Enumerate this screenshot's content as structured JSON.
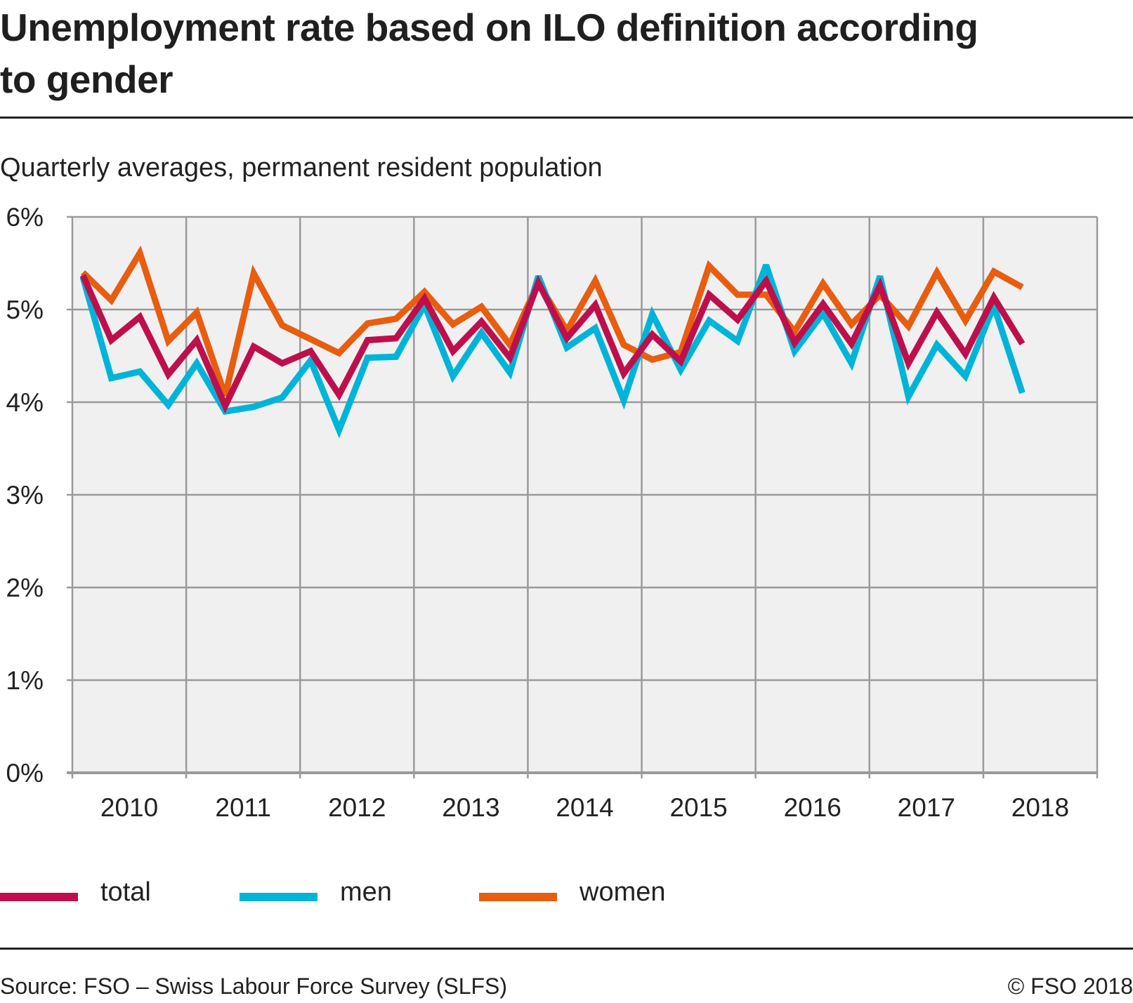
{
  "title": "Unemployment rate based on ILO definition according to gender",
  "subtitle": "Quarterly averages, permanent resident population",
  "legend": [
    {
      "name": "total",
      "color": "#be0f4d"
    },
    {
      "name": "men",
      "color": "#00b4d8"
    },
    {
      "name": "women",
      "color": "#e85d0f"
    }
  ],
  "footer": {
    "source": "Source: FSO – Swiss Labour Force Survey (SLFS)",
    "copyright": "© FSO 2018"
  },
  "chart_data": {
    "type": "line",
    "title": "Unemployment rate based on ILO definition according to gender",
    "subtitle": "Quarterly averages, permanent resident population",
    "xlabel": "",
    "ylabel": "",
    "x": [
      "2010Q1",
      "2010Q2",
      "2010Q3",
      "2010Q4",
      "2011Q1",
      "2011Q2",
      "2011Q3",
      "2011Q4",
      "2012Q1",
      "2012Q2",
      "2012Q3",
      "2012Q4",
      "2013Q1",
      "2013Q2",
      "2013Q3",
      "2013Q4",
      "2014Q1",
      "2014Q2",
      "2014Q3",
      "2014Q4",
      "2015Q1",
      "2015Q2",
      "2015Q3",
      "2015Q4",
      "2016Q1",
      "2016Q2",
      "2016Q3",
      "2016Q4",
      "2017Q1",
      "2017Q2",
      "2017Q3",
      "2017Q4",
      "2018Q1",
      "2018Q2"
    ],
    "x_tick_labels": [
      "2010",
      "2011",
      "2012",
      "2013",
      "2014",
      "2015",
      "2016",
      "2017",
      "2018"
    ],
    "y_tick_labels": [
      "0%",
      "1%",
      "2%",
      "3%",
      "4%",
      "5%",
      "6%"
    ],
    "ylim": [
      0,
      6
    ],
    "y_unit": "%",
    "grid": true,
    "legend_position": "bottom",
    "series": [
      {
        "name": "total",
        "color": "#be0f4d",
        "values": [
          5.37,
          4.67,
          4.92,
          4.3,
          4.67,
          3.96,
          4.6,
          4.42,
          4.55,
          4.08,
          4.67,
          4.69,
          5.12,
          4.55,
          4.87,
          4.48,
          5.29,
          4.69,
          5.05,
          4.31,
          4.73,
          4.44,
          5.16,
          4.89,
          5.31,
          4.64,
          5.06,
          4.63,
          5.26,
          4.42,
          4.97,
          4.52,
          5.13,
          4.63
        ]
      },
      {
        "name": "men",
        "color": "#00b4d8",
        "values": [
          5.35,
          4.26,
          4.33,
          3.97,
          4.42,
          3.9,
          3.95,
          4.05,
          4.45,
          3.7,
          4.48,
          4.49,
          5.05,
          4.28,
          4.75,
          4.32,
          5.36,
          4.59,
          4.8,
          4.02,
          4.95,
          4.35,
          4.88,
          4.66,
          5.48,
          4.55,
          4.96,
          4.42,
          5.36,
          4.06,
          4.62,
          4.28,
          5.04,
          4.1
        ]
      },
      {
        "name": "women",
        "color": "#e85d0f",
        "values": [
          5.4,
          5.1,
          5.61,
          4.66,
          4.97,
          4.07,
          5.39,
          4.83,
          4.68,
          4.53,
          4.85,
          4.9,
          5.19,
          4.84,
          5.03,
          4.62,
          5.29,
          4.77,
          5.31,
          4.62,
          4.46,
          4.54,
          5.47,
          5.16,
          5.16,
          4.76,
          5.28,
          4.84,
          5.16,
          4.82,
          5.4,
          4.88,
          5.41,
          5.24
        ]
      }
    ]
  }
}
